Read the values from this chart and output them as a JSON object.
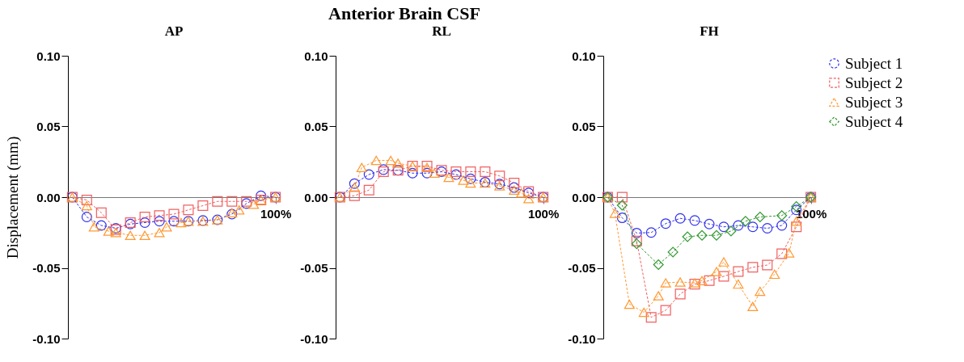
{
  "chart_data": [
    {
      "type": "line",
      "title": "AP",
      "ylabel": "Displacement (mm)",
      "annotations": [
        "Anterior Brain CSF"
      ],
      "categories": [
        null,
        null,
        null,
        null,
        null,
        null,
        null,
        null,
        null,
        null,
        null,
        null,
        null,
        null,
        null,
        null,
        null,
        null,
        null,
        null,
        null,
        null,
        null,
        null,
        null,
        null,
        null,
        null,
        "100%"
      ],
      "ylim": [
        -0.1,
        0.1
      ],
      "yticks": [
        {
          "value": -0.1,
          "label": "-0.10"
        },
        {
          "value": -0.05,
          "label": "-0.05"
        },
        {
          "value": 0,
          "label": "0.00"
        },
        {
          "value": 0.05,
          "label": "0.05"
        },
        {
          "value": 0.1,
          "label": "0.10"
        }
      ],
      "line_style": "dashed",
      "series": [
        {
          "color": "#3333ee",
          "marker": "circle",
          "values": [
            0,
            null,
            -0.014,
            null,
            -0.02,
            null,
            -0.022,
            null,
            -0.019,
            null,
            -0.018,
            null,
            -0.017,
            null,
            -0.017,
            null,
            -0.017,
            null,
            -0.0165,
            null,
            -0.016,
            null,
            -0.012,
            null,
            -0.0045,
            null,
            0.001,
            null,
            0
          ]
        },
        {
          "color": "#f06060",
          "marker": "square",
          "values": [
            0,
            null,
            -0.002,
            null,
            -0.011,
            null,
            -0.023,
            null,
            -0.018,
            null,
            -0.014,
            null,
            -0.013,
            null,
            -0.012,
            null,
            -0.009,
            null,
            -0.006,
            null,
            -0.003,
            null,
            -0.003,
            null,
            -0.003,
            null,
            -0.002,
            null,
            0
          ]
        },
        {
          "color": "#ff9933",
          "marker": "triangle",
          "values": [
            0,
            null,
            -0.006,
            -0.021,
            null,
            -0.024,
            -0.025,
            null,
            -0.027,
            null,
            -0.027,
            null,
            -0.025,
            -0.021,
            null,
            -0.018,
            -0.017,
            null,
            -0.017,
            null,
            -0.016,
            null,
            -0.011,
            -0.009,
            null,
            -0.005,
            -0.002,
            null,
            0
          ]
        }
      ]
    },
    {
      "type": "line",
      "title": "RL",
      "categories": [
        null,
        null,
        null,
        null,
        null,
        null,
        null,
        null,
        null,
        null,
        null,
        null,
        null,
        null,
        null,
        null,
        null,
        null,
        null,
        null,
        null,
        null,
        null,
        null,
        null,
        null,
        null,
        null,
        "100%"
      ],
      "ylim": [
        -0.1,
        0.1
      ],
      "yticks": [
        {
          "value": -0.1,
          "label": "-0.10"
        },
        {
          "value": -0.05,
          "label": "-0.05"
        },
        {
          "value": 0,
          "label": "0.00"
        },
        {
          "value": 0.05,
          "label": "0.05"
        },
        {
          "value": 0.1,
          "label": "0.10"
        }
      ],
      "line_style": "dashed",
      "series": [
        {
          "color": "#3333ee",
          "marker": "circle",
          "values": [
            0,
            null,
            0.0096,
            null,
            0.016,
            null,
            0.0195,
            null,
            0.019,
            null,
            0.017,
            null,
            0.017,
            null,
            0.018,
            null,
            0.016,
            null,
            0.013,
            null,
            0.0106,
            null,
            0.0093,
            null,
            0.0068,
            null,
            0.003,
            null,
            0
          ]
        },
        {
          "color": "#f06060",
          "marker": "square",
          "values": [
            0,
            null,
            0.001,
            null,
            0.005,
            null,
            0.018,
            null,
            0.019,
            null,
            0.022,
            null,
            0.022,
            null,
            0.019,
            null,
            0.018,
            null,
            0.018,
            null,
            0.018,
            null,
            0.015,
            null,
            0.01,
            null,
            0.004,
            null,
            0
          ]
        },
        {
          "color": "#ff9933",
          "marker": "triangle",
          "values": [
            0,
            null,
            0.007,
            0.021,
            null,
            0.026,
            null,
            0.026,
            0.024,
            null,
            0.022,
            null,
            0.021,
            0.017,
            null,
            0.014,
            null,
            0.012,
            0.01,
            null,
            0.01,
            null,
            0.008,
            null,
            0.005,
            0.003,
            -0.001,
            null,
            0
          ]
        }
      ]
    },
    {
      "type": "line",
      "title": "FH",
      "categories": [
        null,
        null,
        null,
        null,
        null,
        null,
        null,
        null,
        null,
        null,
        null,
        null,
        null,
        null,
        null,
        null,
        null,
        null,
        null,
        null,
        null,
        null,
        null,
        null,
        null,
        null,
        null,
        null,
        "100%"
      ],
      "ylim": [
        -0.1,
        0.1
      ],
      "yticks": [
        {
          "value": -0.1,
          "label": "-0.10"
        },
        {
          "value": -0.05,
          "label": "-0.05"
        },
        {
          "value": 0,
          "label": "0.00"
        },
        {
          "value": 0.05,
          "label": "0.05"
        },
        {
          "value": 0.1,
          "label": "0.10"
        }
      ],
      "legend": "right",
      "line_style": "dashed",
      "series": [
        {
          "name": "Subject 1",
          "color": "#3333ee",
          "marker": "circle",
          "values": [
            0,
            null,
            -0.0146,
            null,
            -0.0254,
            null,
            -0.025,
            null,
            -0.0187,
            null,
            -0.015,
            null,
            -0.0165,
            null,
            -0.019,
            null,
            -0.021,
            null,
            -0.02,
            null,
            -0.021,
            null,
            -0.022,
            null,
            -0.02,
            null,
            -0.009,
            null,
            0
          ]
        },
        {
          "name": "Subject 2",
          "color": "#f06060",
          "marker": "square",
          "values": [
            0,
            null,
            0,
            null,
            -0.031,
            null,
            -0.085,
            null,
            -0.08,
            null,
            -0.0685,
            null,
            -0.0615,
            null,
            -0.059,
            null,
            -0.056,
            null,
            -0.0526,
            null,
            -0.0496,
            null,
            -0.048,
            null,
            -0.04,
            null,
            -0.021,
            null,
            0
          ]
        },
        {
          "name": "Subject 3",
          "color": "#ff9933",
          "marker": "triangle",
          "values": [
            0,
            -0.0114,
            null,
            -0.0757,
            null,
            -0.0814,
            null,
            -0.0697,
            -0.0606,
            null,
            -0.06,
            null,
            -0.0606,
            -0.059,
            null,
            -0.0526,
            -0.0458,
            null,
            -0.0615,
            null,
            -0.0773,
            -0.0666,
            null,
            -0.0545,
            null,
            -0.0394,
            -0.017,
            null,
            0
          ]
        },
        {
          "name": "Subject 4",
          "color": "#339933",
          "marker": "diamond",
          "values": [
            0,
            null,
            -0.0057,
            null,
            -0.033,
            null,
            null,
            -0.0477,
            null,
            -0.0388,
            null,
            -0.028,
            null,
            -0.027,
            null,
            -0.027,
            null,
            -0.024,
            null,
            -0.017,
            null,
            -0.014,
            null,
            null,
            -0.013,
            null,
            -0.0066,
            null,
            0
          ]
        }
      ]
    }
  ]
}
